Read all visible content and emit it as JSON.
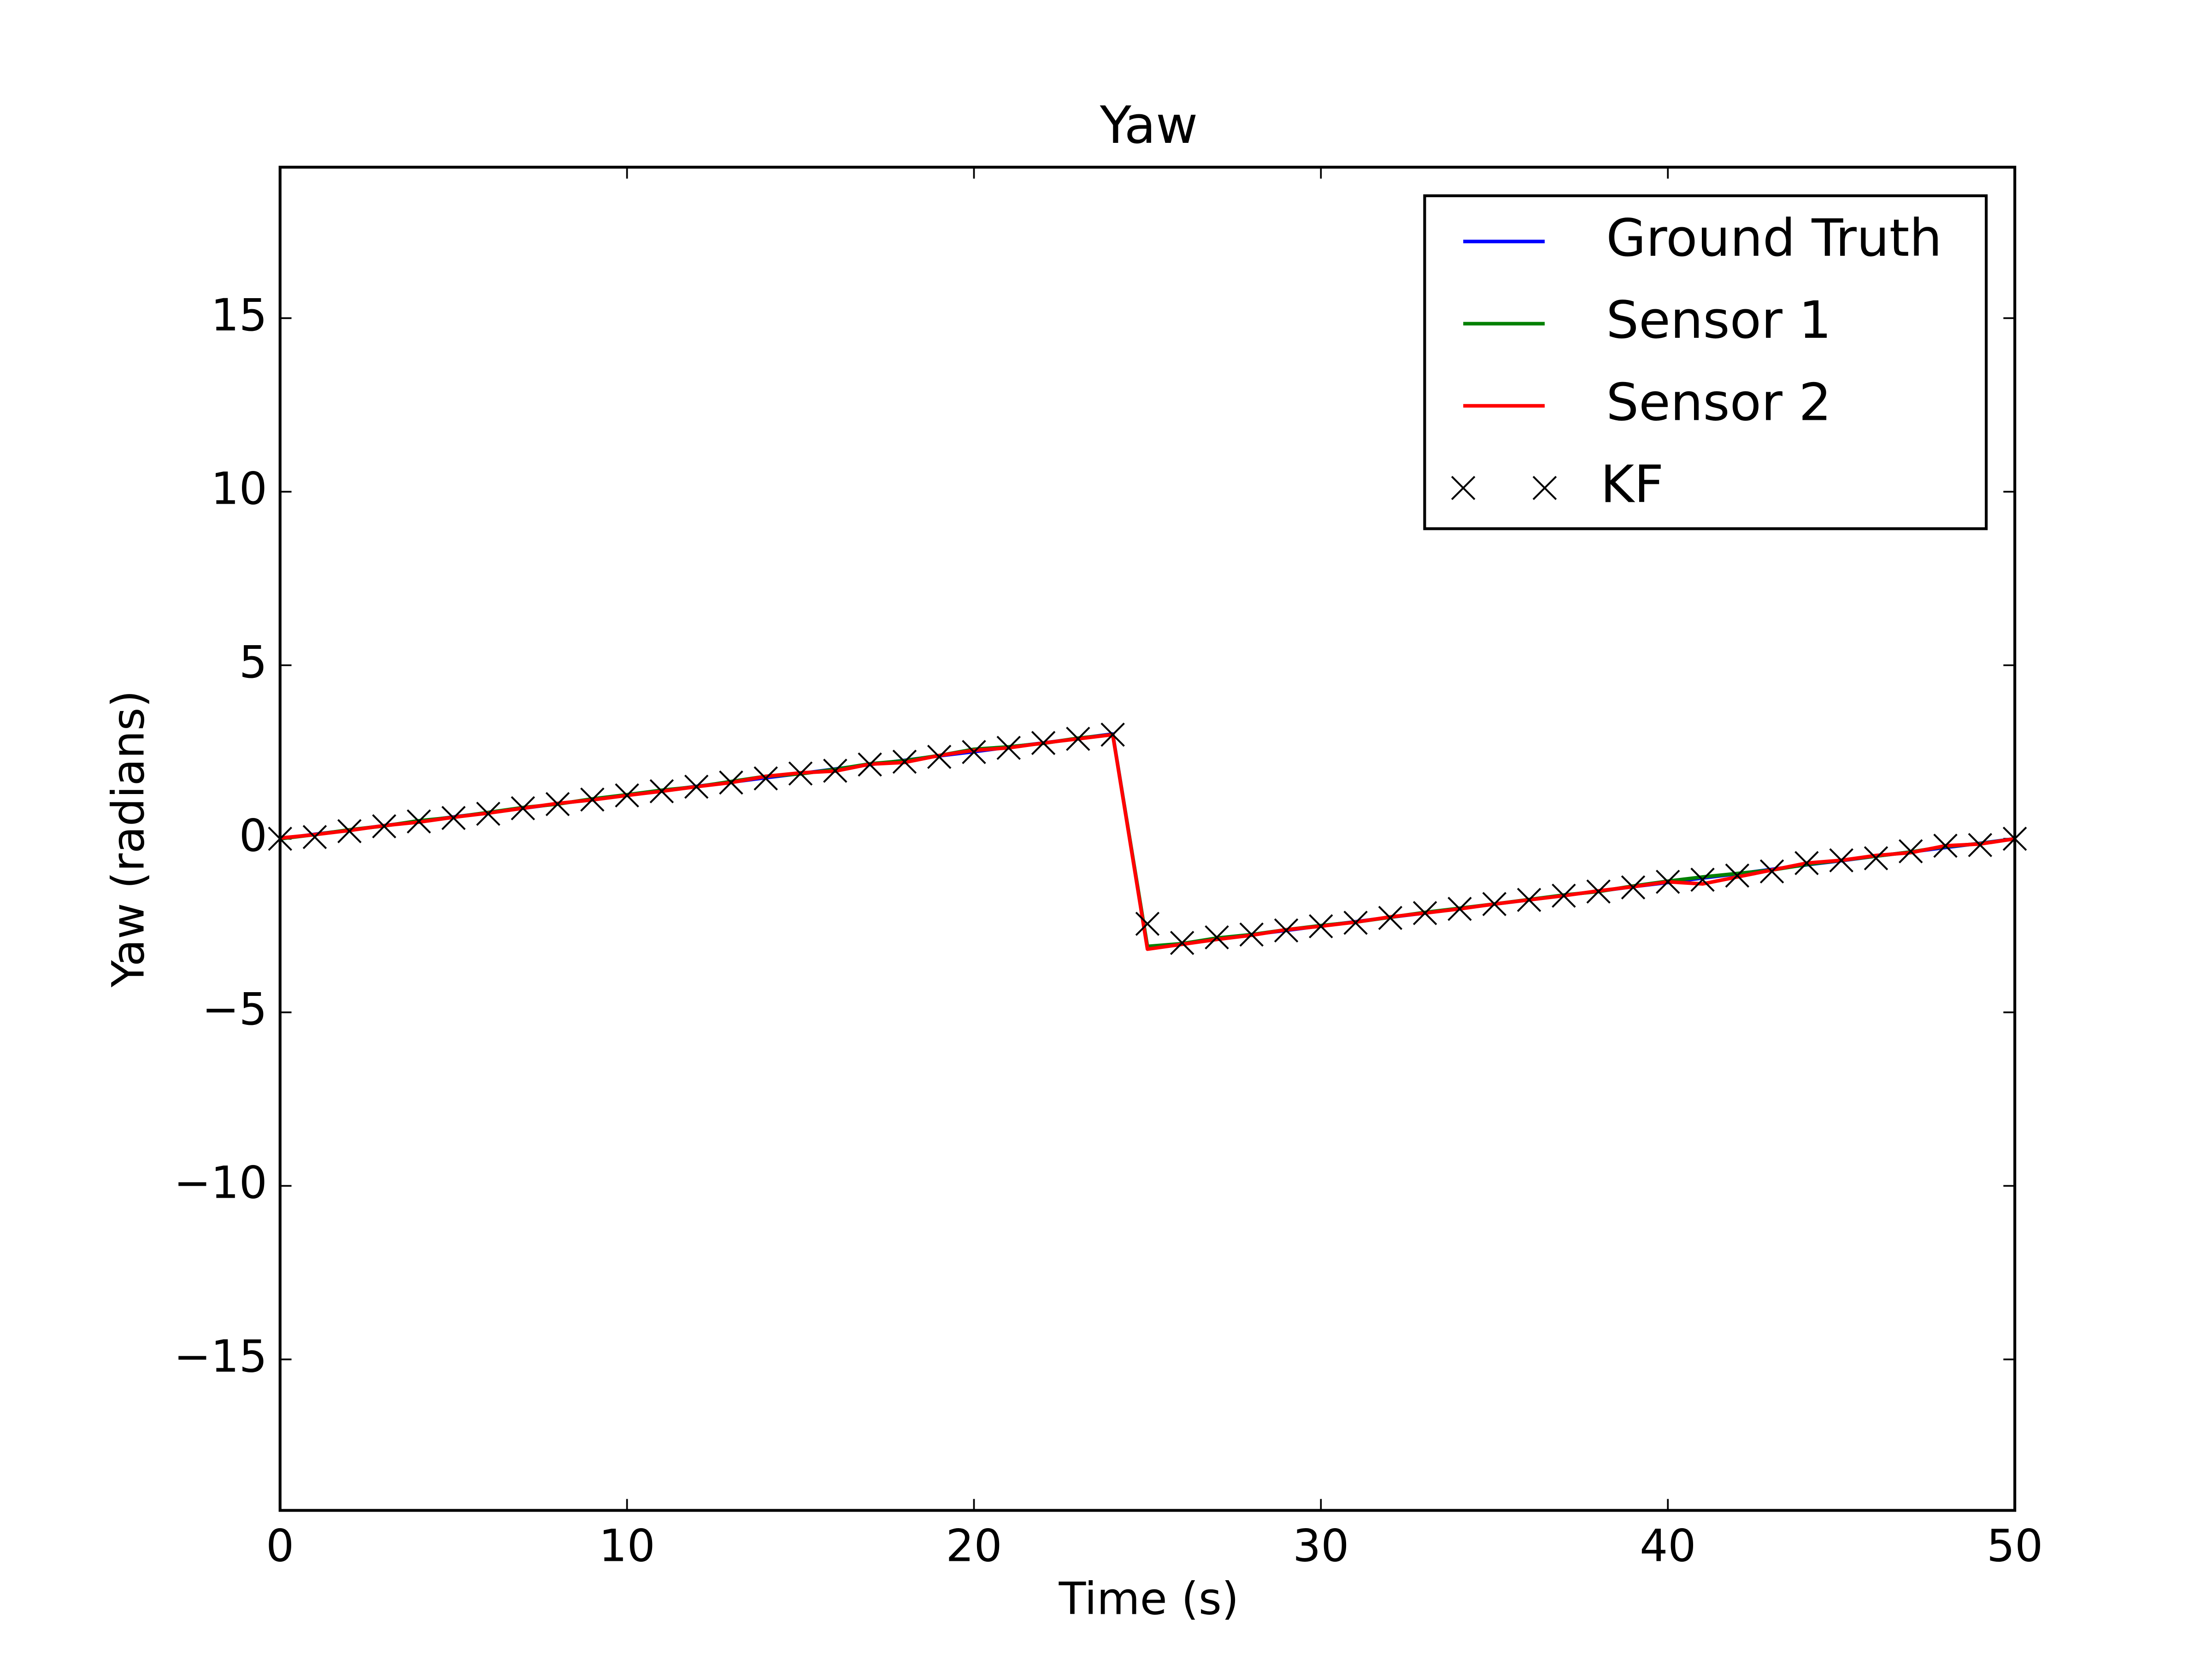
{
  "chart_data": {
    "type": "line",
    "title": "Yaw",
    "xlabel": "Time (s)",
    "ylabel": "Yaw (radians)",
    "x": [
      0,
      1,
      2,
      3,
      4,
      5,
      6,
      7,
      8,
      9,
      10,
      11,
      12,
      13,
      14,
      15,
      16,
      17,
      18,
      19,
      20,
      21,
      22,
      23,
      24,
      25,
      26,
      27,
      28,
      29,
      30,
      31,
      32,
      33,
      34,
      35,
      36,
      37,
      38,
      39,
      40,
      41,
      42,
      43,
      44,
      45,
      46,
      47,
      48,
      49,
      50
    ],
    "series": [
      {
        "name": "Ground Truth",
        "color": "#0000ff",
        "values": [
          0,
          0.13,
          0.25,
          0.38,
          0.5,
          0.63,
          0.75,
          0.88,
          1.01,
          1.13,
          1.26,
          1.38,
          1.51,
          1.63,
          1.76,
          1.88,
          2.01,
          2.14,
          2.26,
          2.39,
          2.51,
          2.64,
          2.76,
          2.89,
          3.02,
          -3.14,
          -3.02,
          -2.89,
          -2.76,
          -2.64,
          -2.51,
          -2.39,
          -2.26,
          -2.14,
          -2.01,
          -1.88,
          -1.76,
          -1.63,
          -1.51,
          -1.38,
          -1.26,
          -1.13,
          -1.01,
          -0.88,
          -0.75,
          -0.63,
          -0.5,
          -0.38,
          -0.25,
          -0.13,
          0
        ]
      },
      {
        "name": "Sensor 1",
        "color": "#008000",
        "values": [
          0,
          0.12,
          0.26,
          0.37,
          0.52,
          0.62,
          0.76,
          0.9,
          1.0,
          1.15,
          1.27,
          1.4,
          1.5,
          1.65,
          1.8,
          1.87,
          2.0,
          2.16,
          2.25,
          2.4,
          2.58,
          2.65,
          2.75,
          2.9,
          3.0,
          -3.1,
          -3.02,
          -2.86,
          -2.76,
          -2.62,
          -2.5,
          -2.4,
          -2.26,
          -2.12,
          -2.0,
          -1.88,
          -1.75,
          -1.62,
          -1.52,
          -1.36,
          -1.22,
          -1.1,
          -1.0,
          -0.9,
          -0.74,
          -0.62,
          -0.5,
          -0.38,
          -0.22,
          -0.14,
          0
        ]
      },
      {
        "name": "Sensor 2",
        "color": "#ff0000",
        "values": [
          0.02,
          0.12,
          0.24,
          0.38,
          0.48,
          0.62,
          0.74,
          0.88,
          1.02,
          1.12,
          1.25,
          1.37,
          1.5,
          1.62,
          1.8,
          1.9,
          1.95,
          2.15,
          2.2,
          2.4,
          2.55,
          2.62,
          2.76,
          2.88,
          3.0,
          -3.18,
          -3.04,
          -2.9,
          -2.78,
          -2.62,
          -2.52,
          -2.4,
          -2.25,
          -2.14,
          -2.02,
          -1.88,
          -1.76,
          -1.64,
          -1.5,
          -1.38,
          -1.24,
          -1.3,
          -1.1,
          -0.9,
          -0.7,
          -0.62,
          -0.48,
          -0.4,
          -0.2,
          -0.15,
          0
        ]
      },
      {
        "name": "KF",
        "color": "#000000",
        "marker": "x",
        "values": [
          0,
          0.05,
          0.22,
          0.36,
          0.5,
          0.6,
          0.72,
          0.88,
          1.0,
          1.13,
          1.25,
          1.37,
          1.5,
          1.62,
          1.74,
          1.88,
          1.96,
          2.14,
          2.22,
          2.36,
          2.5,
          2.62,
          2.76,
          2.88,
          3.0,
          -2.45,
          -3.0,
          -2.84,
          -2.76,
          -2.64,
          -2.52,
          -2.42,
          -2.28,
          -2.14,
          -2.02,
          -1.88,
          -1.76,
          -1.64,
          -1.52,
          -1.4,
          -1.24,
          -1.18,
          -1.06,
          -0.94,
          -0.7,
          -0.62,
          -0.56,
          -0.36,
          -0.2,
          -0.18,
          0
        ]
      }
    ],
    "xlim": [
      0,
      50
    ],
    "xticks": [
      0,
      10,
      20,
      30,
      40,
      50
    ],
    "ylim": [
      -19.35,
      19.35
    ],
    "yticks": [
      {
        "value": -15,
        "label": "−15"
      },
      {
        "value": -10,
        "label": "−10"
      },
      {
        "value": -5,
        "label": "−5"
      },
      0,
      5,
      10,
      15
    ],
    "legend": "upper right"
  }
}
